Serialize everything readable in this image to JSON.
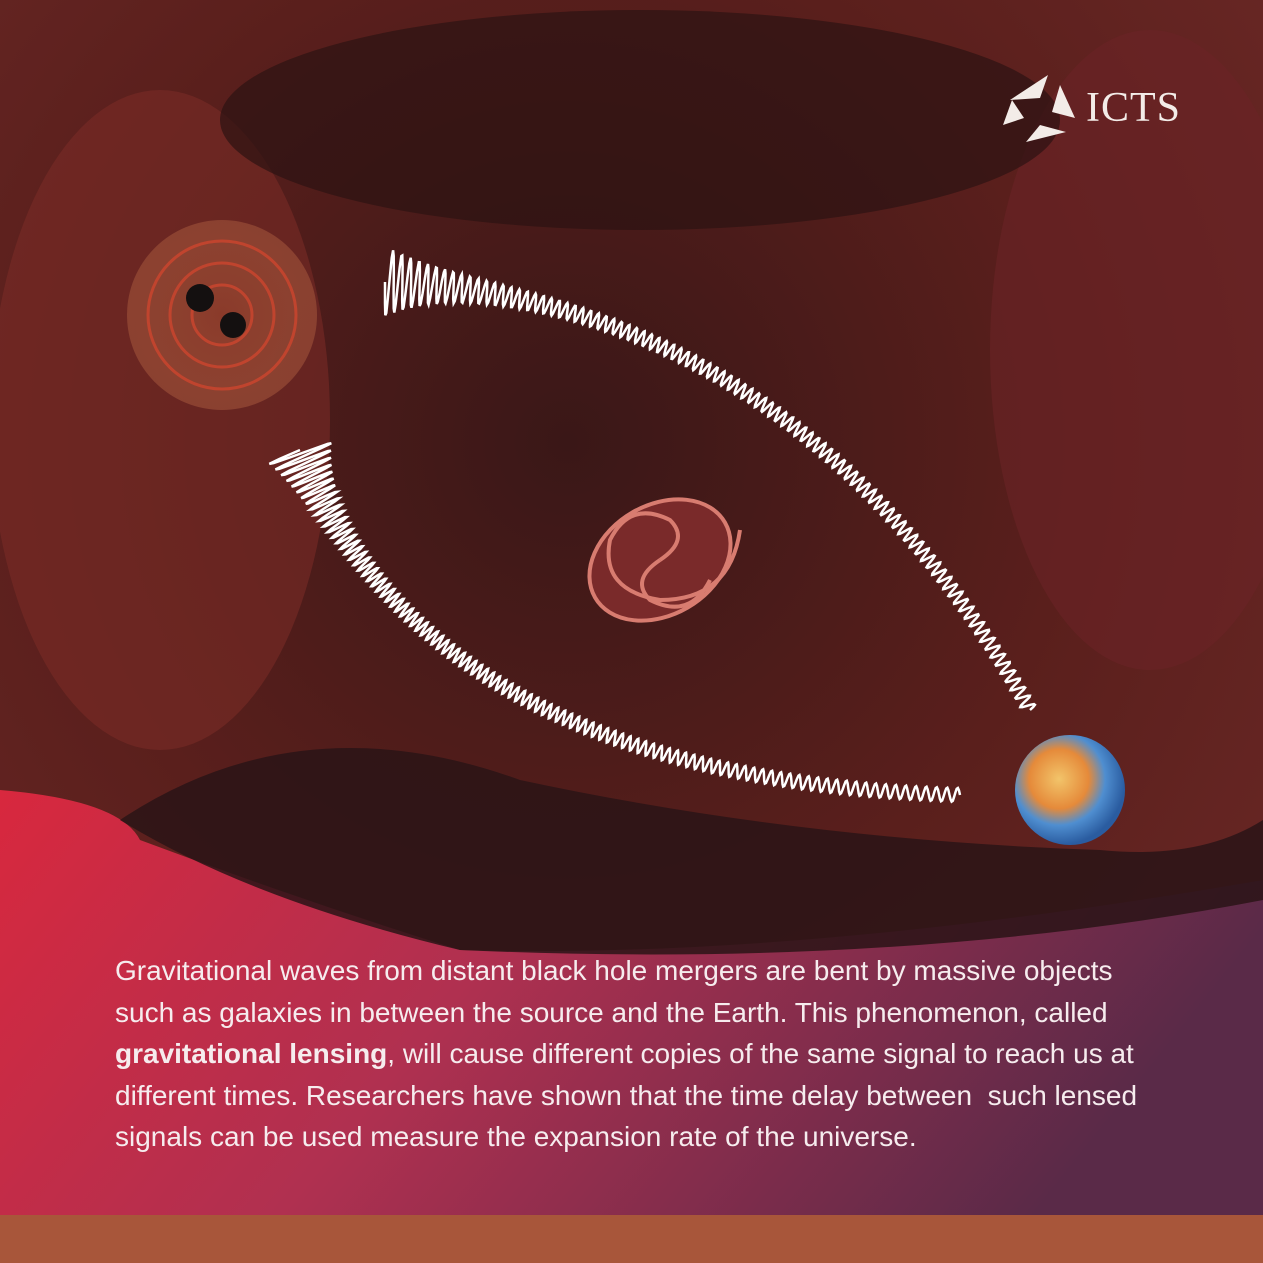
{
  "logo": {
    "text": "ICTS"
  },
  "caption": {
    "parts": [
      "Gravitational waves from distant black hole mergers are bent by massive objects such as galaxies in between the source and the Earth. This phenomenon, called ",
      "gravitational lensing",
      ", will cause different copies of the same signal to reach us at different times. Researchers have shown that the time delay between  such lensed signals can be used measure the expansion rate of the universe."
    ]
  }
}
